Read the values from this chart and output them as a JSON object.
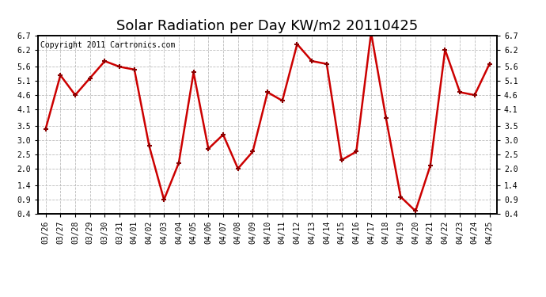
{
  "title": "Solar Radiation per Day KW/m2 20110425",
  "copyright": "Copyright 2011 Cartronics.com",
  "labels": [
    "03/26",
    "03/27",
    "03/28",
    "03/29",
    "03/30",
    "03/31",
    "04/01",
    "04/02",
    "04/03",
    "04/04",
    "04/05",
    "04/06",
    "04/07",
    "04/08",
    "04/09",
    "04/10",
    "04/11",
    "04/12",
    "04/13",
    "04/14",
    "04/15",
    "04/16",
    "04/17",
    "04/18",
    "04/19",
    "04/20",
    "04/21",
    "04/22",
    "04/23",
    "04/24",
    "04/25"
  ],
  "values": [
    3.4,
    5.3,
    4.6,
    5.2,
    5.8,
    5.6,
    5.5,
    2.8,
    0.9,
    2.2,
    5.4,
    2.7,
    3.2,
    2.0,
    2.6,
    4.7,
    4.4,
    6.4,
    5.8,
    5.7,
    2.3,
    2.6,
    6.8,
    3.8,
    1.0,
    0.5,
    2.1,
    6.2,
    4.7,
    4.6,
    5.7
  ],
  "line_color": "#cc0000",
  "marker": "+",
  "marker_color": "#880000",
  "bg_color": "#ffffff",
  "grid_color": "#bbbbbb",
  "ylim": [
    0.4,
    6.7
  ],
  "yticks": [
    0.4,
    0.9,
    1.4,
    2.0,
    2.5,
    3.0,
    3.5,
    4.1,
    4.6,
    5.1,
    5.6,
    6.2,
    6.7
  ],
  "title_fontsize": 13,
  "copyright_fontsize": 7,
  "tick_fontsize": 7
}
